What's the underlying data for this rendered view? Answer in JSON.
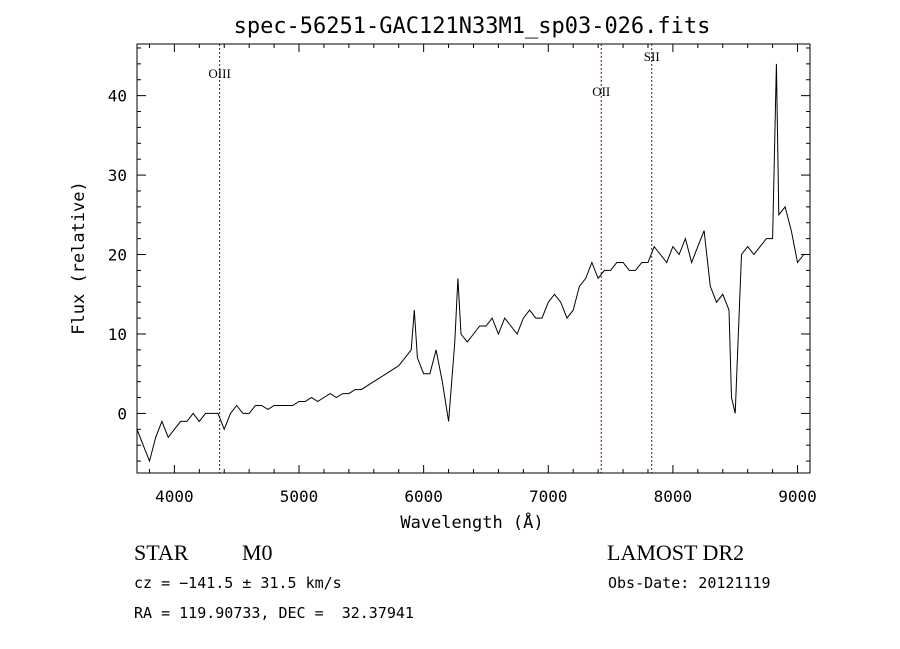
{
  "chart_data": {
    "type": "line",
    "title": "spec-56251-GAC121N33M1_sp03-026.fits",
    "xlabel": "Wavelength (Å)",
    "ylabel": "Flux (relative)",
    "xlim": [
      3700,
      9100
    ],
    "ylim": [
      -7.5,
      46.5
    ],
    "xticks": [
      4000,
      5000,
      6000,
      7000,
      8000,
      9000
    ],
    "xtick_labels": [
      "4000",
      "5000",
      "6000",
      "7000",
      "8000",
      "9000"
    ],
    "yticks": [
      0,
      10,
      20,
      30,
      40
    ],
    "ytick_labels": [
      "0",
      "10",
      "20",
      "30",
      "40"
    ],
    "grid": false,
    "lines": [
      {
        "label": "OIII",
        "x": 4363
      },
      {
        "label": "OII",
        "x": 7425
      },
      {
        "label": "SII",
        "x": 7830
      }
    ],
    "line_color": "#8b0000",
    "series": [
      {
        "color": "#000000",
        "x": [
          3700,
          3750,
          3800,
          3850,
          3900,
          3950,
          4000,
          4050,
          4100,
          4150,
          4200,
          4250,
          4300,
          4350,
          4400,
          4450,
          4500,
          4550,
          4600,
          4650,
          4700,
          4750,
          4800,
          4850,
          4900,
          4950,
          5000,
          5050,
          5100,
          5150,
          5200,
          5250,
          5300,
          5350,
          5400,
          5450,
          5500,
          5550,
          5600,
          5650,
          5700,
          5750,
          5800,
          5850,
          5900,
          5925,
          5950,
          6000,
          6050,
          6100,
          6150,
          6200,
          6250,
          6275,
          6300,
          6350,
          6400,
          6450,
          6500,
          6550,
          6600,
          6650,
          6700,
          6750,
          6800,
          6850,
          6900,
          6950,
          7000,
          7050,
          7100,
          7150,
          7200,
          7250,
          7300,
          7350,
          7400,
          7450,
          7500,
          7550,
          7600,
          7650,
          7700,
          7750,
          7800,
          7850,
          7900,
          7950,
          8000,
          8050,
          8100,
          8150,
          8200,
          8250,
          8300,
          8350,
          8400,
          8450,
          8470,
          8500,
          8550,
          8600,
          8650,
          8700,
          8750,
          8800,
          8830,
          8850,
          8900,
          8950,
          9000,
          9050
        ],
        "y": [
          -2,
          -4,
          -6,
          -3,
          -1,
          -3,
          -2,
          -1,
          -1,
          0,
          -1,
          0,
          0,
          0,
          -2,
          0,
          1,
          0,
          0,
          1,
          1,
          0.5,
          1,
          1,
          1,
          1,
          1.5,
          1.5,
          2,
          1.5,
          2,
          2.5,
          2,
          2.5,
          2.5,
          3,
          3,
          3.5,
          4,
          4.5,
          5,
          5.5,
          6,
          7,
          8,
          13,
          7,
          5,
          5,
          8,
          4,
          -1,
          9,
          17,
          10,
          9,
          10,
          11,
          11,
          12,
          10,
          12,
          11,
          10,
          12,
          13,
          12,
          12,
          14,
          15,
          14,
          12,
          13,
          16,
          17,
          19,
          17,
          18,
          18,
          19,
          19,
          18,
          18,
          19,
          19,
          21,
          20,
          19,
          21,
          20,
          22,
          19,
          21,
          23,
          16,
          14,
          15,
          13,
          2,
          0,
          20,
          21,
          20,
          21,
          22,
          22,
          44,
          25,
          26,
          23,
          19,
          20
        ]
      }
    ]
  },
  "info": {
    "object_class": "STAR",
    "subclass": "M0",
    "survey": "LAMOST DR2",
    "redshift": "cz = −141.5 ± 31.5 km/s",
    "obs_date": "Obs-Date: 20121119",
    "coords": "RA = 119.90733, DEC =  32.37941"
  }
}
